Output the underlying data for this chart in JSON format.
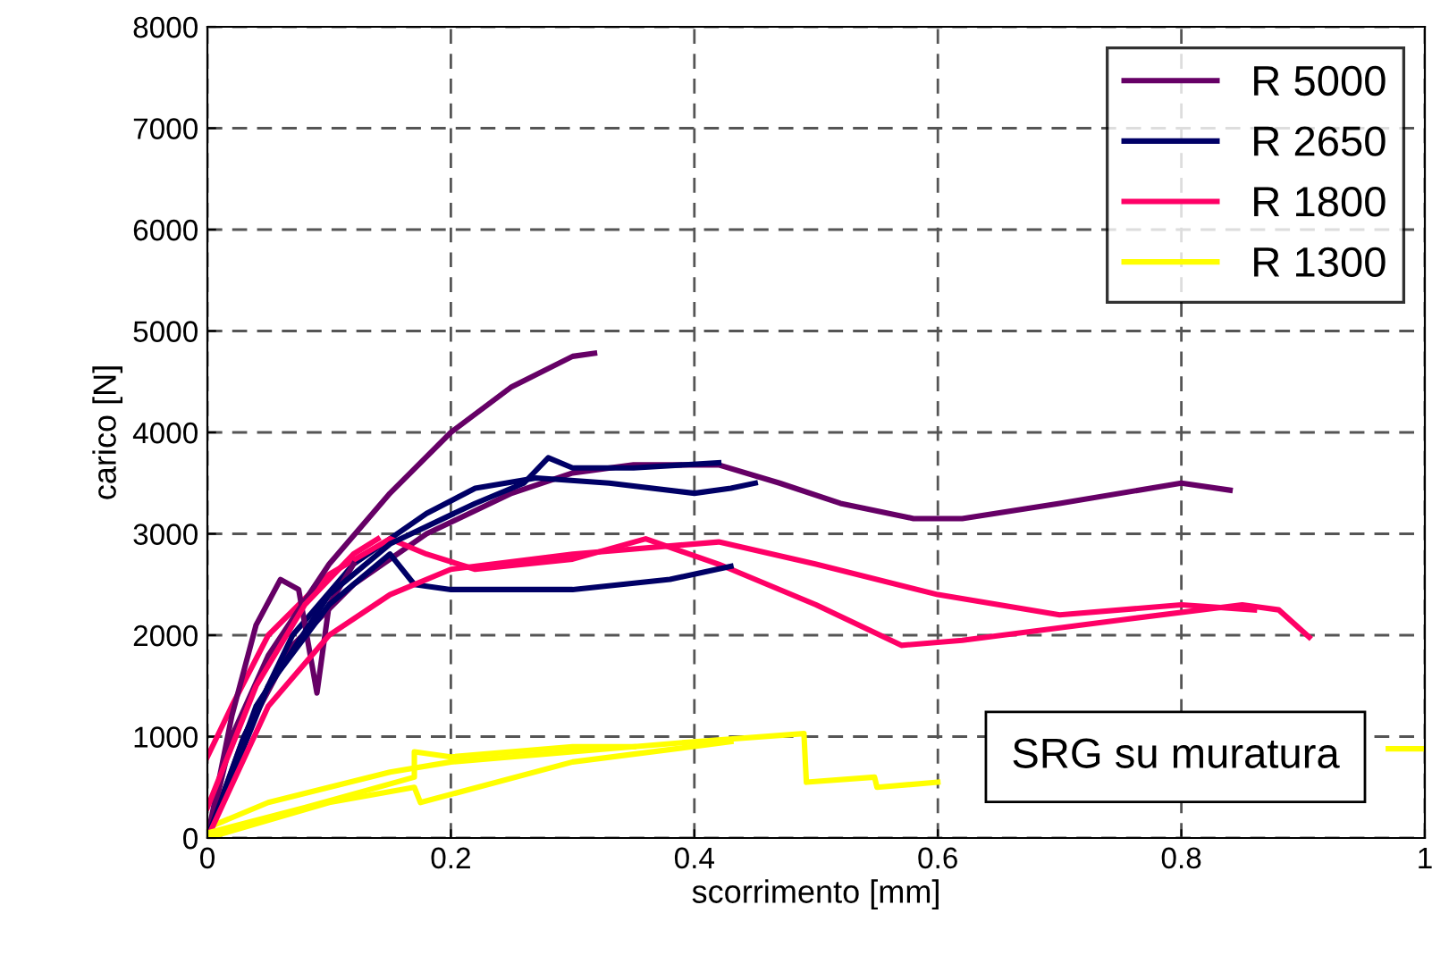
{
  "chart_data": {
    "type": "line",
    "xlabel": "scorrimento [mm]",
    "ylabel": "carico [N]",
    "xlim": [
      0,
      1
    ],
    "ylim": [
      0,
      8000
    ],
    "xticks": [
      0,
      0.2,
      0.4,
      0.6,
      0.8,
      1
    ],
    "yticks": [
      0,
      1000,
      2000,
      3000,
      4000,
      5000,
      6000,
      7000,
      8000
    ],
    "grid": true,
    "legend": "top right",
    "marker": "none",
    "line_style": "solid",
    "annotations": [
      "SRG su muratura"
    ],
    "series": [
      {
        "name": "R 5000",
        "color": "#660066",
        "x": [
          0,
          0.03,
          0.07,
          0.12,
          0.18,
          0.25,
          0.3,
          0.35,
          0.42,
          0.47,
          0.52,
          0.58,
          0.62,
          0.7,
          0.8,
          0.84
        ],
        "values": [
          0,
          1000,
          1900,
          2500,
          3000,
          3400,
          3600,
          3680,
          3680,
          3500,
          3300,
          3150,
          3150,
          3300,
          3500,
          3430
        ]
      },
      {
        "name": "R 2650",
        "color": "#000066",
        "x": [
          0,
          0.03,
          0.07,
          0.12,
          0.18,
          0.22,
          0.27,
          0.33,
          0.4,
          0.43,
          0.45
        ],
        "values": [
          0,
          1000,
          2000,
          2700,
          3200,
          3450,
          3550,
          3500,
          3400,
          3450,
          3500
        ]
      },
      {
        "name": "R 1800",
        "color": "#ff0066",
        "x": [
          0,
          0.02,
          0.05,
          0.1,
          0.15,
          0.18,
          0.22,
          0.3,
          0.36,
          0.42,
          0.5,
          0.57,
          0.62,
          0.75,
          0.85,
          0.88,
          0.905
        ],
        "values": [
          800,
          1300,
          2000,
          2600,
          2950,
          2800,
          2650,
          2750,
          2950,
          2700,
          2300,
          1900,
          1950,
          2150,
          2300,
          2250,
          1980
        ]
      },
      {
        "name": "R 1300",
        "color": "#ffff00",
        "x": [
          0,
          0.05,
          0.1,
          0.15,
          0.2,
          0.3,
          0.4,
          0.49,
          0.492,
          0.548,
          0.55,
          0.6,
          0.8,
          0.97,
          1.0
        ],
        "values": [
          100,
          350,
          500,
          650,
          750,
          850,
          950,
          1030,
          550,
          600,
          500,
          550,
          null,
          880,
          880
        ]
      },
      {
        "color": "#660066",
        "x": [
          0,
          0.02,
          0.05,
          0.1,
          0.15,
          0.2,
          0.25,
          0.3,
          0.318
        ],
        "values": [
          0,
          1000,
          1800,
          2700,
          3400,
          4000,
          4450,
          4750,
          4780
        ]
      },
      {
        "color": "#660066",
        "x": [
          0,
          0.02,
          0.04,
          0.06,
          0.075,
          0.09,
          0.1,
          0.12
        ],
        "values": [
          0,
          1200,
          2100,
          2550,
          2450,
          1430,
          2300,
          2700
        ]
      },
      {
        "color": "#000066",
        "x": [
          0,
          0.05,
          0.1,
          0.15,
          0.17,
          0.2,
          0.3,
          0.38,
          0.43
        ],
        "values": [
          0,
          1500,
          2300,
          2800,
          2500,
          2450,
          2450,
          2550,
          2680
        ]
      },
      {
        "color": "#000066",
        "x": [
          0,
          0.04,
          0.1,
          0.15,
          0.22,
          0.26,
          0.28,
          0.3,
          0.35,
          0.42
        ],
        "values": [
          0,
          1300,
          2400,
          2900,
          3300,
          3500,
          3750,
          3650,
          3650,
          3700
        ]
      },
      {
        "color": "#ff0066",
        "x": [
          0,
          0.05,
          0.1,
          0.15,
          0.2,
          0.3,
          0.42,
          0.5,
          0.6,
          0.7,
          0.8,
          0.86
        ],
        "values": [
          0,
          1300,
          2000,
          2400,
          2650,
          2800,
          2920,
          2700,
          2400,
          2200,
          2300,
          2250
        ]
      },
      {
        "color": "#ff0066",
        "x": [
          0,
          0.04,
          0.08,
          0.12,
          0.14
        ],
        "values": [
          300,
          1500,
          2300,
          2800,
          2950
        ]
      },
      {
        "color": "#ffff00",
        "x": [
          0,
          0.08,
          0.17,
          0.17,
          0.2,
          0.3,
          0.35
        ],
        "values": [
          50,
          300,
          600,
          850,
          800,
          900,
          900
        ]
      },
      {
        "color": "#ffff00",
        "x": [
          0,
          0.1,
          0.17,
          0.175,
          0.3,
          0.43
        ],
        "values": [
          0,
          350,
          500,
          350,
          750,
          950
        ]
      }
    ]
  }
}
